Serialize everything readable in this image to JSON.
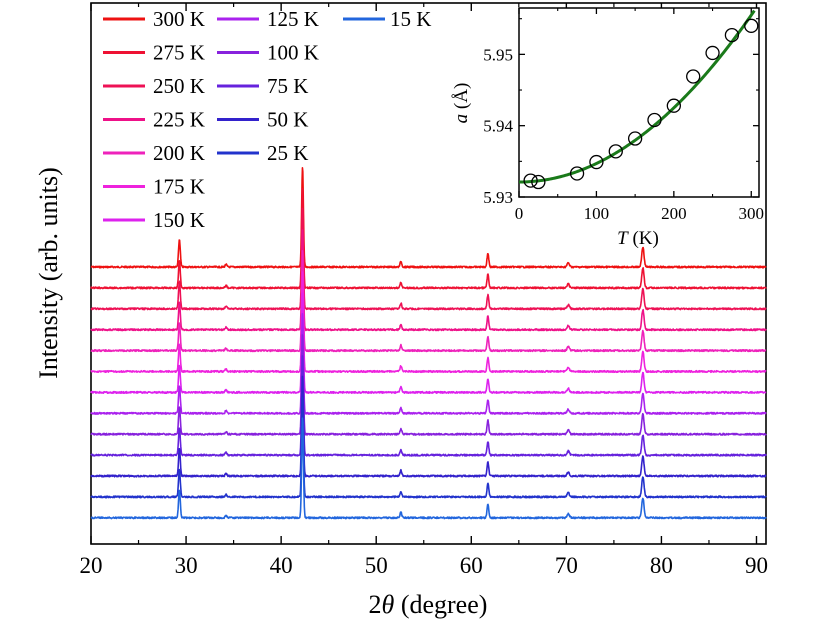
{
  "chart_data": [
    {
      "type": "line",
      "xlabel_prefix": "2",
      "xlabel_symbol": "θ",
      "xlabel_suffix": " (degree)",
      "ylabel": "Intensity (arb. units)",
      "xlim": [
        20,
        91
      ],
      "xticks": [
        20,
        30,
        40,
        50,
        60,
        70,
        80,
        90
      ],
      "yticks_shown": false,
      "peaks": [
        {
          "pos": 29.3,
          "height": 0.11
        },
        {
          "pos": 34.2,
          "height": 0.01
        },
        {
          "pos": 42.25,
          "height": 0.4
        },
        {
          "pos": 52.6,
          "height": 0.022
        },
        {
          "pos": 61.75,
          "height": 0.055
        },
        {
          "pos": 70.2,
          "height": 0.016
        },
        {
          "pos": 78.05,
          "height": 0.08
        }
      ],
      "series": [
        {
          "name": "300 K",
          "temperature": 300,
          "color": "#ee1111"
        },
        {
          "name": "275 K",
          "temperature": 275,
          "color": "#ee1133"
        },
        {
          "name": "250 K",
          "temperature": 250,
          "color": "#ee1155"
        },
        {
          "name": "225 K",
          "temperature": 225,
          "color": "#ee1188"
        },
        {
          "name": "200 K",
          "temperature": 200,
          "color": "#ee22bb"
        },
        {
          "name": "175 K",
          "temperature": 175,
          "color": "#ee22dd"
        },
        {
          "name": "150 K",
          "temperature": 150,
          "color": "#dd22ee"
        },
        {
          "name": "125 K",
          "temperature": 125,
          "color": "#aa22ee"
        },
        {
          "name": "100 K",
          "temperature": 100,
          "color": "#8822dd"
        },
        {
          "name": "75 K",
          "temperature": 75,
          "color": "#6622dd"
        },
        {
          "name": "50 K",
          "temperature": 50,
          "color": "#3322cc"
        },
        {
          "name": "25 K",
          "temperature": 25,
          "color": "#2233cc"
        },
        {
          "name": "15 K",
          "temperature": 15,
          "color": "#2266dd"
        }
      ],
      "legend_placement": "top-left"
    },
    {
      "type": "scatter",
      "inset": true,
      "xlabel": "T",
      "xlabel_unit": " (K)",
      "ylabel": "a",
      "ylabel_unit": " (Å)",
      "xlim": [
        0,
        310
      ],
      "ylim": [
        5.93,
        5.9565
      ],
      "xticks": [
        0,
        100,
        200,
        300
      ],
      "yticks": [
        5.93,
        5.94,
        5.95
      ],
      "points": [
        {
          "x": 15,
          "y": 5.9323
        },
        {
          "x": 25,
          "y": 5.9321
        },
        {
          "x": 75,
          "y": 5.9333
        },
        {
          "x": 100,
          "y": 5.9349
        },
        {
          "x": 125,
          "y": 5.9364
        },
        {
          "x": 150,
          "y": 5.9382
        },
        {
          "x": 175,
          "y": 5.9408
        },
        {
          "x": 200,
          "y": 5.9428
        },
        {
          "x": 225,
          "y": 5.9469
        },
        {
          "x": 250,
          "y": 5.9502
        },
        {
          "x": 275,
          "y": 5.9527
        },
        {
          "x": 300,
          "y": 5.954
        }
      ],
      "fit": {
        "a0": 5.9321,
        "a1": 2.6e-07,
        "power": 2,
        "color": "#1a7a1a"
      }
    }
  ]
}
